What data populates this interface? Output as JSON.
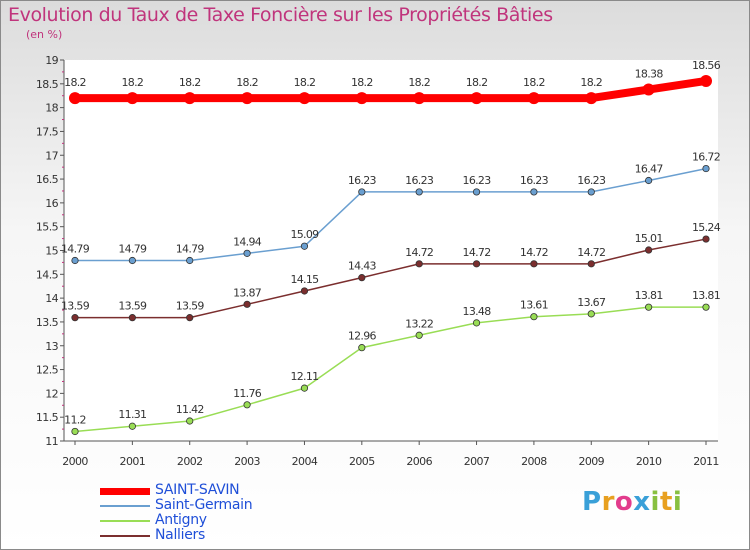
{
  "chart_data": {
    "type": "line",
    "title": "Evolution du Taux de Taxe Foncière sur les Propriétés Bâties",
    "subtitle": "(en %)",
    "x": [
      "2000",
      "2001",
      "2002",
      "2003",
      "2004",
      "2005",
      "2006",
      "2007",
      "2008",
      "2009",
      "2010",
      "2011"
    ],
    "ylim": [
      11,
      19
    ],
    "yticks": [
      "11",
      "11.5",
      "12",
      "12.5",
      "13",
      "13.5",
      "14",
      "14.5",
      "15",
      "15.5",
      "16",
      "16.5",
      "17",
      "17.5",
      "18",
      "18.5",
      "19"
    ],
    "grid": false,
    "series": [
      {
        "name": "SAINT-SAVIN",
        "color": "#ff0000",
        "values": [
          18.2,
          18.2,
          18.2,
          18.2,
          18.2,
          18.2,
          18.2,
          18.2,
          18.2,
          18.2,
          18.38,
          18.56
        ],
        "labels": [
          "18.2",
          "18.2",
          "18.2",
          "18.2",
          "18.2",
          "18.2",
          "18.2",
          "18.2",
          "18.2",
          "18.2",
          "18.38",
          "18.56"
        ]
      },
      {
        "name": "Saint-Germain",
        "color": "#6a9fd0",
        "values": [
          14.79,
          14.79,
          14.79,
          14.94,
          15.09,
          16.23,
          16.23,
          16.23,
          16.23,
          16.23,
          16.47,
          16.72
        ],
        "labels": [
          "14.79",
          "14.79",
          "14.79",
          "14.94",
          "15.09",
          "16.23",
          "16.23",
          "16.23",
          "16.23",
          "16.23",
          "16.47",
          "16.72"
        ]
      },
      {
        "name": "Antigny",
        "color": "#99dd55",
        "values": [
          11.2,
          11.31,
          11.42,
          11.76,
          12.11,
          12.96,
          13.22,
          13.48,
          13.61,
          13.67,
          13.81,
          13.81
        ],
        "labels": [
          "11.2",
          "11.31",
          "11.42",
          "11.76",
          "12.11",
          "12.96",
          "13.22",
          "13.48",
          "13.61",
          "13.67",
          "13.81",
          "13.81"
        ]
      },
      {
        "name": "Nalliers",
        "color": "#7b2e2e",
        "values": [
          13.59,
          13.59,
          13.59,
          13.87,
          14.15,
          14.43,
          14.72,
          14.72,
          14.72,
          14.72,
          15.01,
          15.24
        ],
        "labels": [
          "13.59",
          "13.59",
          "13.59",
          "13.87",
          "14.15",
          "14.43",
          "14.72",
          "14.72",
          "14.72",
          "14.72",
          "15.01",
          "15.24"
        ]
      }
    ]
  },
  "logo": {
    "letters": [
      "P",
      "r",
      "o",
      "x",
      "i",
      "t",
      "i"
    ]
  }
}
